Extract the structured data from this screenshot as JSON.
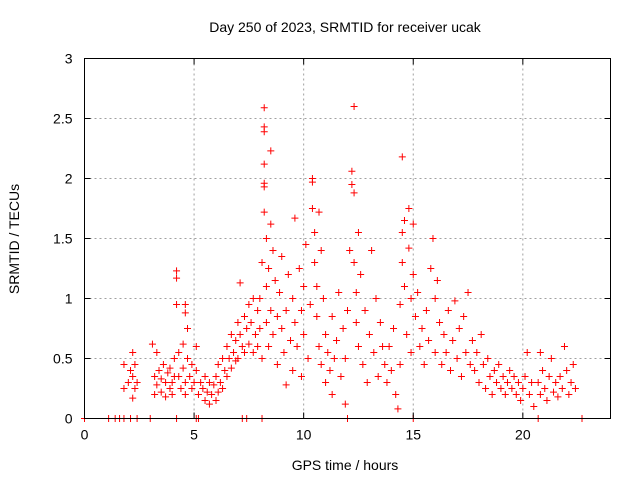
{
  "chart_data": {
    "type": "scatter",
    "title": "Day 250 of 2023, SRMTID for receiver ucak",
    "xlabel": "GPS time / hours",
    "ylabel": "SRMTID / TECUs",
    "xlim": [
      0,
      24
    ],
    "ylim": [
      0,
      3
    ],
    "grid": true,
    "marker": "+",
    "marker_color": "#ff0000",
    "x_ticks": [
      0,
      5,
      10,
      15,
      20
    ],
    "x_tick_labels": [
      "0",
      "5",
      "10",
      "15",
      "20"
    ],
    "y_ticks": [
      0,
      0.5,
      1,
      1.5,
      2,
      2.5,
      3
    ],
    "y_tick_labels": [
      "0",
      "0.5",
      "1",
      "1.5",
      "2",
      "2.5",
      "3"
    ],
    "series": [
      {
        "name": "SRMTID",
        "points": [
          [
            0.0,
            0.0
          ],
          [
            1.1,
            0.0
          ],
          [
            1.4,
            0.0
          ],
          [
            1.6,
            0.0
          ],
          [
            1.8,
            0.0
          ],
          [
            2.1,
            0.0
          ],
          [
            2.4,
            0.0
          ],
          [
            3.0,
            0.0
          ],
          [
            4.2,
            0.0
          ],
          [
            5.1,
            0.0
          ],
          [
            5.2,
            0.0
          ],
          [
            7.2,
            0.0
          ],
          [
            7.4,
            0.0
          ],
          [
            8.1,
            0.0
          ],
          [
            12.0,
            0.0
          ],
          [
            15.0,
            0.0
          ],
          [
            20.7,
            0.0
          ],
          [
            22.7,
            0.0
          ],
          [
            1.8,
            0.45
          ],
          [
            1.8,
            0.25
          ],
          [
            2.0,
            0.3
          ],
          [
            2.1,
            0.4
          ],
          [
            2.2,
            0.55
          ],
          [
            2.2,
            0.35
          ],
          [
            2.3,
            0.25
          ],
          [
            2.3,
            0.45
          ],
          [
            2.4,
            0.3
          ],
          [
            2.2,
            0.17
          ],
          [
            3.1,
            0.62
          ],
          [
            3.2,
            0.35
          ],
          [
            3.2,
            0.2
          ],
          [
            3.3,
            0.55
          ],
          [
            3.3,
            0.28
          ],
          [
            3.4,
            0.4
          ],
          [
            3.5,
            0.22
          ],
          [
            3.5,
            0.33
          ],
          [
            3.6,
            0.45
          ],
          [
            3.7,
            0.3
          ],
          [
            3.7,
            0.18
          ],
          [
            3.8,
            0.38
          ],
          [
            3.9,
            0.25
          ],
          [
            3.9,
            0.42
          ],
          [
            4.0,
            0.3
          ],
          [
            4.0,
            0.2
          ],
          [
            4.1,
            0.35
          ],
          [
            4.1,
            0.5
          ],
          [
            4.2,
            1.23
          ],
          [
            4.2,
            1.17
          ],
          [
            4.2,
            0.95
          ],
          [
            4.3,
            0.55
          ],
          [
            4.3,
            0.35
          ],
          [
            4.4,
            0.25
          ],
          [
            4.5,
            0.62
          ],
          [
            4.5,
            0.42
          ],
          [
            4.6,
            0.3
          ],
          [
            4.6,
            0.2
          ],
          [
            4.6,
            0.95
          ],
          [
            4.6,
            0.88
          ],
          [
            4.7,
            0.75
          ],
          [
            4.7,
            0.5
          ],
          [
            4.8,
            0.35
          ],
          [
            4.9,
            0.25
          ],
          [
            4.9,
            0.45
          ],
          [
            5.0,
            0.3
          ],
          [
            5.1,
            0.6
          ],
          [
            5.1,
            0.4
          ],
          [
            5.2,
            0.2
          ],
          [
            5.3,
            0.3
          ],
          [
            5.4,
            0.25
          ],
          [
            5.5,
            0.15
          ],
          [
            5.5,
            0.35
          ],
          [
            5.6,
            0.22
          ],
          [
            5.7,
            0.12
          ],
          [
            5.7,
            0.3
          ],
          [
            5.8,
            0.2
          ],
          [
            5.9,
            0.28
          ],
          [
            6.0,
            0.15
          ],
          [
            6.0,
            0.35
          ],
          [
            6.1,
            0.22
          ],
          [
            6.1,
            0.45
          ],
          [
            6.2,
            0.3
          ],
          [
            6.3,
            0.5
          ],
          [
            6.3,
            0.25
          ],
          [
            6.4,
            0.4
          ],
          [
            6.5,
            0.6
          ],
          [
            6.5,
            0.35
          ],
          [
            6.6,
            0.5
          ],
          [
            6.7,
            0.7
          ],
          [
            6.7,
            0.42
          ],
          [
            6.8,
            0.55
          ],
          [
            6.9,
            0.48
          ],
          [
            6.9,
            0.65
          ],
          [
            7.0,
            0.8
          ],
          [
            7.0,
            0.5
          ],
          [
            7.1,
            1.13
          ],
          [
            7.1,
            0.7
          ],
          [
            7.2,
            0.6
          ],
          [
            7.3,
            0.85
          ],
          [
            7.3,
            0.55
          ],
          [
            7.4,
            0.75
          ],
          [
            7.5,
            0.95
          ],
          [
            7.5,
            0.62
          ],
          [
            7.6,
            0.8
          ],
          [
            7.7,
            0.55
          ],
          [
            7.7,
            1.0
          ],
          [
            7.8,
            0.7
          ],
          [
            7.9,
            0.9
          ],
          [
            7.9,
            0.6
          ],
          [
            8.0,
            1.0
          ],
          [
            8.0,
            0.75
          ],
          [
            8.1,
            1.3
          ],
          [
            8.1,
            0.5
          ],
          [
            8.2,
            2.59
          ],
          [
            8.2,
            2.43
          ],
          [
            8.2,
            2.39
          ],
          [
            8.2,
            2.12
          ],
          [
            8.2,
            1.96
          ],
          [
            8.2,
            1.93
          ],
          [
            8.2,
            1.72
          ],
          [
            8.3,
            1.5
          ],
          [
            8.3,
            1.1
          ],
          [
            8.3,
            0.8
          ],
          [
            8.4,
            1.25
          ],
          [
            8.4,
            0.6
          ],
          [
            8.5,
            2.23
          ],
          [
            8.5,
            1.62
          ],
          [
            8.5,
            0.9
          ],
          [
            8.6,
            1.4
          ],
          [
            8.6,
            0.7
          ],
          [
            8.7,
            1.15
          ],
          [
            8.8,
            0.85
          ],
          [
            8.8,
            0.45
          ],
          [
            8.9,
            1.05
          ],
          [
            9.0,
            0.75
          ],
          [
            9.0,
            1.35
          ],
          [
            9.1,
            0.55
          ],
          [
            9.2,
            0.9
          ],
          [
            9.2,
            0.28
          ],
          [
            9.3,
            1.2
          ],
          [
            9.4,
            0.65
          ],
          [
            9.5,
            1.0
          ],
          [
            9.5,
            0.4
          ],
          [
            9.6,
            0.8
          ],
          [
            9.6,
            1.67
          ],
          [
            9.7,
            0.6
          ],
          [
            9.8,
            1.25
          ],
          [
            9.9,
            0.9
          ],
          [
            9.9,
            0.35
          ],
          [
            10.0,
            1.1
          ],
          [
            10.0,
            0.7
          ],
          [
            10.1,
            1.45
          ],
          [
            10.2,
            0.5
          ],
          [
            10.3,
            0.95
          ],
          [
            10.4,
            2.0
          ],
          [
            10.4,
            1.97
          ],
          [
            10.4,
            1.75
          ],
          [
            10.5,
            1.55
          ],
          [
            10.5,
            1.3
          ],
          [
            10.6,
            1.1
          ],
          [
            10.6,
            0.85
          ],
          [
            10.7,
            1.72
          ],
          [
            10.7,
            0.6
          ],
          [
            10.8,
            1.4
          ],
          [
            10.8,
            0.45
          ],
          [
            10.9,
            1.0
          ],
          [
            11.0,
            0.7
          ],
          [
            11.0,
            0.3
          ],
          [
            11.1,
            0.55
          ],
          [
            11.2,
            0.4
          ],
          [
            11.3,
            0.85
          ],
          [
            11.3,
            0.2
          ],
          [
            11.4,
            0.5
          ],
          [
            11.5,
            0.65
          ],
          [
            11.6,
            1.05
          ],
          [
            11.7,
            0.35
          ],
          [
            11.8,
            0.75
          ],
          [
            11.9,
            0.12
          ],
          [
            11.9,
            0.5
          ],
          [
            12.0,
            0.9
          ],
          [
            12.1,
            1.4
          ],
          [
            12.2,
            2.06
          ],
          [
            12.2,
            1.95
          ],
          [
            12.3,
            2.6
          ],
          [
            12.3,
            1.88
          ],
          [
            12.3,
            1.3
          ],
          [
            12.4,
            1.05
          ],
          [
            12.4,
            0.8
          ],
          [
            12.5,
            1.55
          ],
          [
            12.5,
            0.6
          ],
          [
            12.6,
            1.2
          ],
          [
            12.7,
            0.45
          ],
          [
            12.8,
            0.9
          ],
          [
            12.9,
            0.3
          ],
          [
            13.0,
            0.7
          ],
          [
            13.1,
            1.4
          ],
          [
            13.2,
            0.55
          ],
          [
            13.3,
            1.0
          ],
          [
            13.4,
            0.35
          ],
          [
            13.5,
            0.8
          ],
          [
            13.6,
            0.6
          ],
          [
            13.7,
            0.45
          ],
          [
            13.8,
            0.3
          ],
          [
            13.9,
            0.6
          ],
          [
            14.0,
            0.4
          ],
          [
            14.1,
            0.75
          ],
          [
            14.2,
            0.2
          ],
          [
            14.3,
            0.08
          ],
          [
            14.4,
            0.45
          ],
          [
            14.4,
            0.95
          ],
          [
            14.5,
            2.18
          ],
          [
            14.5,
            1.55
          ],
          [
            14.5,
            1.3
          ],
          [
            14.6,
            1.65
          ],
          [
            14.6,
            1.1
          ],
          [
            14.7,
            0.7
          ],
          [
            14.8,
            1.75
          ],
          [
            14.8,
            1.42
          ],
          [
            14.9,
            1.0
          ],
          [
            14.9,
            0.55
          ],
          [
            15.0,
            1.62
          ],
          [
            15.0,
            1.2
          ],
          [
            15.1,
            0.85
          ],
          [
            15.2,
            1.05
          ],
          [
            15.3,
            0.6
          ],
          [
            15.4,
            0.75
          ],
          [
            15.5,
            0.45
          ],
          [
            15.6,
            0.9
          ],
          [
            15.7,
            0.65
          ],
          [
            15.8,
            1.25
          ],
          [
            15.9,
            1.5
          ],
          [
            16.0,
            1.0
          ],
          [
            16.0,
            0.55
          ],
          [
            16.1,
            1.15
          ],
          [
            16.2,
            0.8
          ],
          [
            16.3,
            0.45
          ],
          [
            16.4,
            0.7
          ],
          [
            16.5,
            0.55
          ],
          [
            16.6,
            0.9
          ],
          [
            16.7,
            0.4
          ],
          [
            16.8,
            0.65
          ],
          [
            16.9,
            0.98
          ],
          [
            17.0,
            0.5
          ],
          [
            17.1,
            0.75
          ],
          [
            17.2,
            0.35
          ],
          [
            17.3,
            0.85
          ],
          [
            17.4,
            0.55
          ],
          [
            17.5,
            1.05
          ],
          [
            17.6,
            0.45
          ],
          [
            17.7,
            0.65
          ],
          [
            17.8,
            0.4
          ],
          [
            17.9,
            0.55
          ],
          [
            18.0,
            0.3
          ],
          [
            18.1,
            0.7
          ],
          [
            18.2,
            0.45
          ],
          [
            18.3,
            0.25
          ],
          [
            18.4,
            0.5
          ],
          [
            18.5,
            0.35
          ],
          [
            18.6,
            0.2
          ],
          [
            18.7,
            0.4
          ],
          [
            18.8,
            0.3
          ],
          [
            18.9,
            0.45
          ],
          [
            19.0,
            0.25
          ],
          [
            19.1,
            0.35
          ],
          [
            19.2,
            0.2
          ],
          [
            19.3,
            0.3
          ],
          [
            19.4,
            0.4
          ],
          [
            19.5,
            0.25
          ],
          [
            19.6,
            0.35
          ],
          [
            19.7,
            0.2
          ],
          [
            19.8,
            0.3
          ],
          [
            19.9,
            0.15
          ],
          [
            20.0,
            0.25
          ],
          [
            20.1,
            0.35
          ],
          [
            20.2,
            0.55
          ],
          [
            20.3,
            0.2
          ],
          [
            20.4,
            0.3
          ],
          [
            20.5,
            0.1
          ],
          [
            20.7,
            0.3
          ],
          [
            20.8,
            0.55
          ],
          [
            20.8,
            0.2
          ],
          [
            20.9,
            0.4
          ],
          [
            21.0,
            0.25
          ],
          [
            21.1,
            0.15
          ],
          [
            21.2,
            0.35
          ],
          [
            21.3,
            0.5
          ],
          [
            21.4,
            0.22
          ],
          [
            21.5,
            0.3
          ],
          [
            21.6,
            0.18
          ],
          [
            21.7,
            0.35
          ],
          [
            21.8,
            0.25
          ],
          [
            21.9,
            0.6
          ],
          [
            22.0,
            0.4
          ],
          [
            22.1,
            0.2
          ],
          [
            22.2,
            0.3
          ],
          [
            22.3,
            0.45
          ],
          [
            22.4,
            0.25
          ]
        ]
      }
    ]
  }
}
